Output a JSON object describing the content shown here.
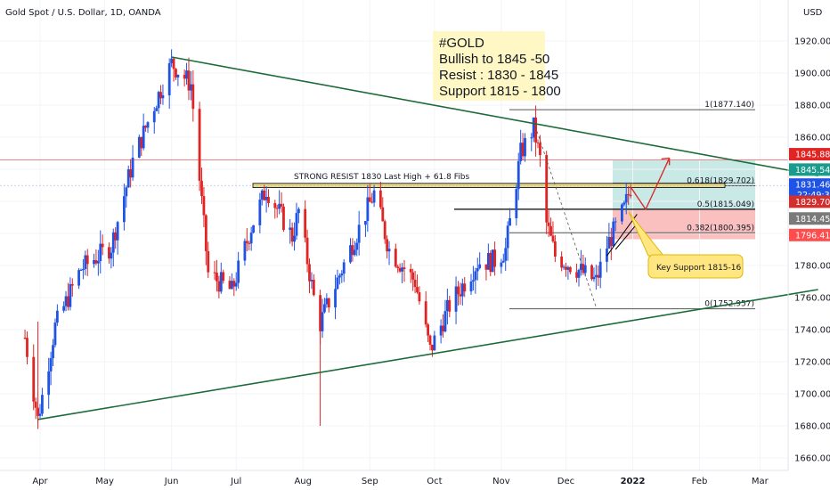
{
  "header": {
    "title": "Gold Spot / U.S. Dollar, 1D, OANDA",
    "currency": "USD"
  },
  "chart_data": {
    "type": "candlestick",
    "symbol": "Gold Spot / U.S. Dollar",
    "interval": "1D",
    "exchange": "OANDA",
    "ylim": [
      1650,
      1945
    ],
    "y_ticks": [
      1660,
      1680,
      1700,
      1720,
      1740,
      1760,
      1780,
      1800,
      1820,
      1840,
      1860,
      1880,
      1900,
      1920
    ],
    "x_ticks": [
      "Apr",
      "May",
      "Jun",
      "Jul",
      "Aug",
      "Sep",
      "Oct",
      "Nov",
      "Dec",
      "2022",
      "Feb",
      "Mar"
    ],
    "colors": {
      "up": "#1e53e5",
      "down": "#e02424",
      "trend": "#1e6b3a",
      "target_zone": "#b2dfdb",
      "stop_zone": "#f8a5a5"
    },
    "waypoints": [
      {
        "date": "2021-03-25",
        "price": 1735
      },
      {
        "date": "2021-03-31",
        "price": 1684
      },
      {
        "date": "2021-04-08",
        "price": 1742
      },
      {
        "date": "2021-04-20",
        "price": 1778
      },
      {
        "date": "2021-05-04",
        "price": 1792
      },
      {
        "date": "2021-05-14",
        "price": 1845
      },
      {
        "date": "2021-05-24",
        "price": 1880
      },
      {
        "date": "2021-06-01",
        "price": 1906
      },
      {
        "date": "2021-06-10",
        "price": 1893
      },
      {
        "date": "2021-06-18",
        "price": 1775
      },
      {
        "date": "2021-06-29",
        "price": 1764
      },
      {
        "date": "2021-07-08",
        "price": 1804
      },
      {
        "date": "2021-07-15",
        "price": 1828
      },
      {
        "date": "2021-07-27",
        "price": 1798
      },
      {
        "date": "2021-07-30",
        "price": 1814
      },
      {
        "date": "2021-08-06",
        "price": 1760
      },
      {
        "date": "2021-08-09",
        "price": 1744
      },
      {
        "date": "2021-08-20",
        "price": 1781
      },
      {
        "date": "2021-09-03",
        "price": 1825
      },
      {
        "date": "2021-09-10",
        "price": 1790
      },
      {
        "date": "2021-09-22",
        "price": 1770
      },
      {
        "date": "2021-09-29",
        "price": 1727
      },
      {
        "date": "2021-10-08",
        "price": 1755
      },
      {
        "date": "2021-10-21",
        "price": 1782
      },
      {
        "date": "2021-10-29",
        "price": 1783
      },
      {
        "date": "2021-11-03",
        "price": 1790
      },
      {
        "date": "2021-11-10",
        "price": 1850
      },
      {
        "date": "2021-11-16",
        "price": 1866
      },
      {
        "date": "2021-11-19",
        "price": 1846
      },
      {
        "date": "2021-11-22",
        "price": 1806
      },
      {
        "date": "2021-11-26",
        "price": 1786
      },
      {
        "date": "2021-12-06",
        "price": 1778
      },
      {
        "date": "2021-12-15",
        "price": 1770
      },
      {
        "date": "2021-12-20",
        "price": 1792
      },
      {
        "date": "2021-12-28",
        "price": 1815
      },
      {
        "date": "2021-12-31",
        "price": 1829
      }
    ],
    "fib_levels": [
      {
        "ratio": "1",
        "price": 1877.14,
        "label": "1(1877.140)"
      },
      {
        "ratio": "0.618",
        "price": 1829.702,
        "label": "0.618(1829.702)"
      },
      {
        "ratio": "0.5",
        "price": 1815.049,
        "label": "0.5(1815.049)"
      },
      {
        "ratio": "0.382",
        "price": 1800.395,
        "label": "0.382(1800.395)"
      },
      {
        "ratio": "0",
        "price": 1752.957,
        "label": "0(1752.957)"
      }
    ],
    "trendlines": [
      {
        "from": {
          "date": "2021-03-31",
          "price": 1684
        },
        "to": {
          "date": "2022-03-28",
          "price": 1765
        }
      },
      {
        "from": {
          "date": "2021-06-01",
          "price": 1910
        },
        "to": {
          "date": "2022-03-28",
          "price": 1836
        }
      }
    ],
    "resistance_label": "STRONG RESIST 1830 Last High + 61.8 Fibs",
    "annotation": {
      "lines": [
        "#GOLD",
        "Bullish to 1845 -50",
        "Resist : 1830 - 1845",
        "Support 1815 - 1800"
      ]
    },
    "callout": "Key Support 1815-16",
    "price_tags": [
      {
        "value": "1845.885",
        "color": "#e02424"
      },
      {
        "value": "1845.543",
        "color": "#1a9c8c"
      },
      {
        "value": "1831.465",
        "color": "#1e53e5",
        "subtext": "22:49:31"
      },
      {
        "value": "1829.704",
        "color": "#d32f2f"
      },
      {
        "value": "1814.459",
        "color": "#7a7a7a"
      },
      {
        "value": "1796.411",
        "color": "#ff4d4d"
      }
    ]
  }
}
